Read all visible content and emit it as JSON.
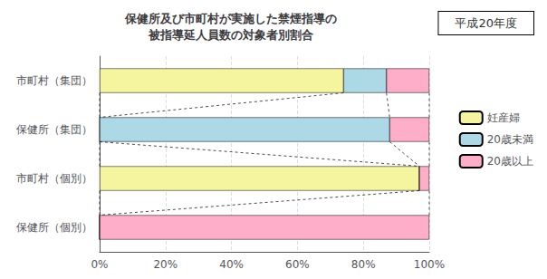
{
  "chart_data": {
    "type": "bar",
    "title": "保健所及び市町村が実施した禁煙指導の\n被指導延人員数の対象者別割合",
    "annotations": [
      "平成20年度"
    ],
    "orientation": "horizontal",
    "stacked": true,
    "categories": [
      "市町村（集団）",
      "保健所（集団）",
      "市町村（個別）",
      "保健所（個別）"
    ],
    "series": [
      {
        "name": "妊産婦",
        "color": "#f5f5a0",
        "values": [
          74.0,
          0.0,
          97.0,
          0.0
        ]
      },
      {
        "name": "20歳未満",
        "color": "#add8e6",
        "values": [
          13.0,
          88.0,
          0.0,
          0.0
        ]
      },
      {
        "name": "20歳以上",
        "color": "#ffaec9",
        "values": [
          13.0,
          12.0,
          3.0,
          100.0
        ]
      }
    ],
    "xlim": [
      0,
      100
    ],
    "xticks": [
      {
        "value": 0,
        "label": "0%"
      },
      {
        "value": 20,
        "label": "20%"
      },
      {
        "value": 40,
        "label": "40%"
      },
      {
        "value": 60,
        "label": "60%"
      },
      {
        "value": 80,
        "label": "80%"
      },
      {
        "value": 100,
        "label": "100%"
      }
    ],
    "grid": true,
    "legend": "right"
  }
}
